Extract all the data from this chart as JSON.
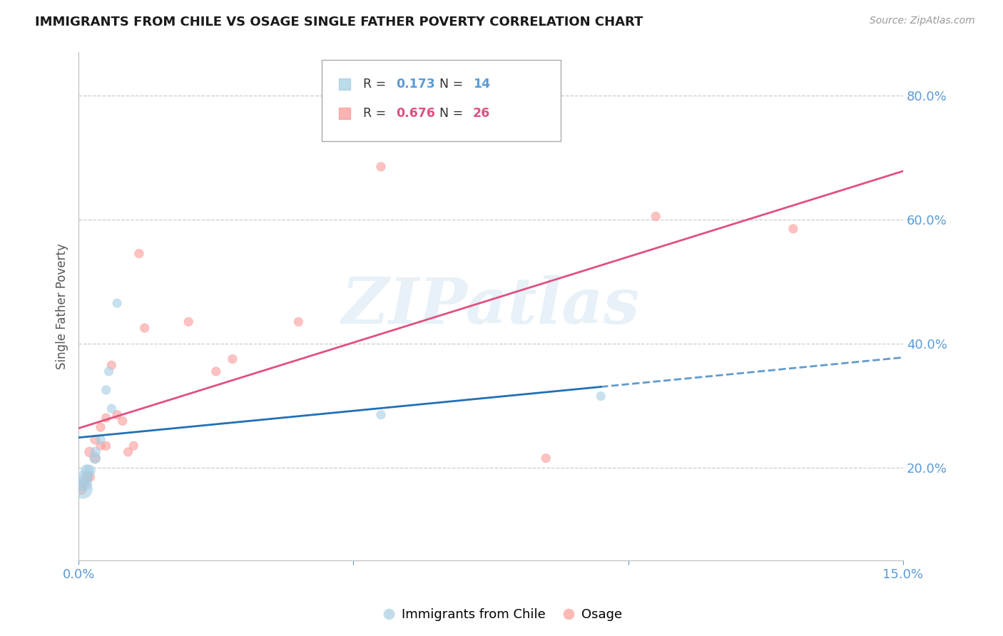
{
  "title": "IMMIGRANTS FROM CHILE VS OSAGE SINGLE FATHER POVERTY CORRELATION CHART",
  "source": "Source: ZipAtlas.com",
  "ylabel": "Single Father Poverty",
  "xmin": 0.0,
  "xmax": 0.15,
  "ymin": 0.05,
  "ymax": 0.87,
  "yticks": [
    0.2,
    0.4,
    0.6,
    0.8
  ],
  "xtick_positions": [
    0.0,
    0.05,
    0.1,
    0.15
  ],
  "xtick_labels": [
    "0.0%",
    "",
    "",
    "15.0%"
  ],
  "ytick_labels": [
    "20.0%",
    "40.0%",
    "60.0%",
    "80.0%"
  ],
  "blue_color": "#a6cee3",
  "pink_color": "#fb9a99",
  "blue_line_color": "#2171b5",
  "pink_line_color": "#e05080",
  "watermark": "ZIPatlas",
  "chile_x": [
    0.0008,
    0.001,
    0.0012,
    0.0015,
    0.002,
    0.003,
    0.003,
    0.004,
    0.005,
    0.0055,
    0.006,
    0.007,
    0.055,
    0.095
  ],
  "chile_y": [
    0.165,
    0.175,
    0.185,
    0.195,
    0.195,
    0.215,
    0.225,
    0.245,
    0.325,
    0.355,
    0.295,
    0.465,
    0.285,
    0.315
  ],
  "chile_sizes": [
    350,
    250,
    200,
    150,
    130,
    120,
    100,
    80,
    80,
    80,
    80,
    80,
    80,
    80
  ],
  "osage_x": [
    0.0005,
    0.001,
    0.0015,
    0.002,
    0.002,
    0.003,
    0.003,
    0.004,
    0.004,
    0.005,
    0.005,
    0.006,
    0.007,
    0.008,
    0.009,
    0.01,
    0.011,
    0.012,
    0.02,
    0.025,
    0.028,
    0.04,
    0.055,
    0.085,
    0.105,
    0.13
  ],
  "osage_y": [
    0.165,
    0.175,
    0.185,
    0.185,
    0.225,
    0.215,
    0.245,
    0.235,
    0.265,
    0.235,
    0.28,
    0.365,
    0.285,
    0.275,
    0.225,
    0.235,
    0.545,
    0.425,
    0.435,
    0.355,
    0.375,
    0.435,
    0.685,
    0.215,
    0.605,
    0.585
  ],
  "osage_sizes": [
    120,
    100,
    100,
    100,
    100,
    90,
    90,
    80,
    80,
    80,
    80,
    80,
    80,
    80,
    80,
    80,
    80,
    80,
    80,
    80,
    80,
    80,
    80,
    80,
    80,
    80
  ],
  "legend_blue_r": "0.173",
  "legend_blue_n": "14",
  "legend_pink_r": "0.676",
  "legend_pink_n": "26"
}
